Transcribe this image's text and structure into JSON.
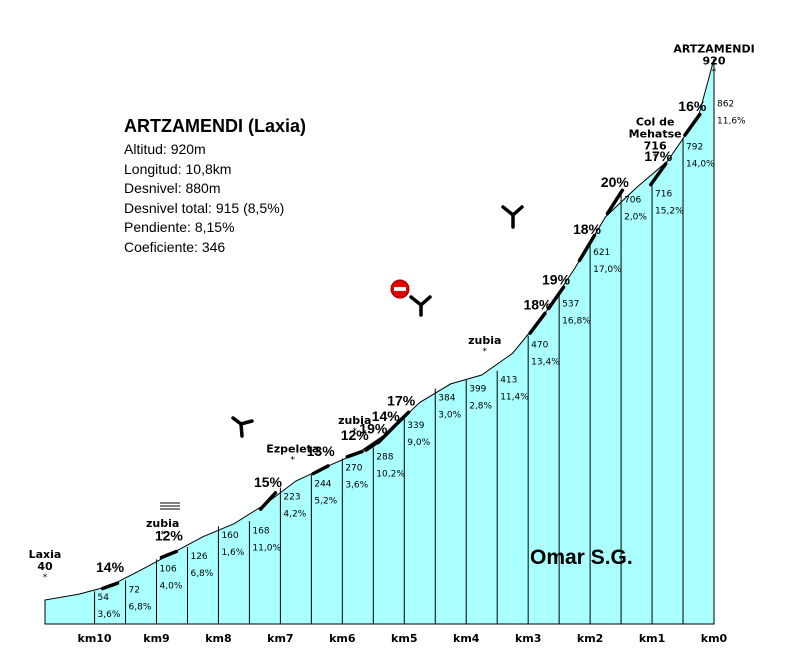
{
  "chart_data": {
    "type": "area",
    "title": "ARTZAMENDI (Laxia)",
    "xlabel": "",
    "ylabel": "",
    "x_range_km": [
      10.8,
      0
    ],
    "fill_color": "#aaffff",
    "stroke_color": "#000000",
    "ticks": [
      "km10",
      "km9",
      "km8",
      "km7",
      "km6",
      "km5",
      "km4",
      "km3",
      "km2",
      "km1",
      "km0"
    ],
    "segments": [
      {
        "km": 10,
        "altitude": "54",
        "grade": "3,6%"
      },
      {
        "km": 9.5,
        "altitude": "72",
        "grade": "6,8%"
      },
      {
        "km": 9,
        "altitude": "106",
        "grade": "4,0%"
      },
      {
        "km": 8.5,
        "altitude": "126",
        "grade": "6,8%"
      },
      {
        "km": 8,
        "altitude": "160",
        "grade": "1,6%"
      },
      {
        "km": 7.5,
        "altitude": "168",
        "grade": "11,0%"
      },
      {
        "km": 7,
        "altitude": "223",
        "grade": "4,2%"
      },
      {
        "km": 6.5,
        "altitude": "244",
        "grade": "5,2%"
      },
      {
        "km": 6,
        "altitude": "270",
        "grade": "3,6%"
      },
      {
        "km": 5.5,
        "altitude": "288",
        "grade": "10,2%"
      },
      {
        "km": 5,
        "altitude": "339",
        "grade": "9,0%"
      },
      {
        "km": 4.5,
        "altitude": "384",
        "grade": "3,0%"
      },
      {
        "km": 4,
        "altitude": "399",
        "grade": "2,8%"
      },
      {
        "km": 3.5,
        "altitude": "413",
        "grade": "11,4%"
      },
      {
        "km": 3,
        "altitude": "470",
        "grade": "13,4%"
      },
      {
        "km": 2.5,
        "altitude": "537",
        "grade": "16,8%"
      },
      {
        "km": 2,
        "altitude": "621",
        "grade": "17,0%"
      },
      {
        "km": 1.5,
        "altitude": "706",
        "grade": "2,0%"
      },
      {
        "km": 1,
        "altitude": "716",
        "grade": "15,2%"
      },
      {
        "km": 0.5,
        "altitude": "792",
        "grade": "14,0%"
      },
      {
        "km": 0,
        "altitude": "862",
        "grade": "11,6%"
      }
    ],
    "steep_labels": [
      {
        "text": "14%",
        "km": 9.75
      },
      {
        "text": "12%",
        "km": 8.8
      },
      {
        "text": "15%",
        "km": 7.2
      },
      {
        "text": "13%",
        "km": 6.35
      },
      {
        "text": "12%",
        "km": 5.8
      },
      {
        "text": "19%",
        "km": 5.5
      },
      {
        "text": "14%",
        "km": 5.3
      },
      {
        "text": "17%",
        "km": 5.05
      },
      {
        "text": "18%",
        "km": 2.85
      },
      {
        "text": "19%",
        "km": 2.55
      },
      {
        "text": "18%",
        "km": 2.05
      },
      {
        "text": "20%",
        "km": 1.6
      },
      {
        "text": "17%",
        "km": 0.9
      },
      {
        "text": "16%",
        "km": 0.35
      }
    ],
    "places": [
      {
        "lines": [
          "Laxia",
          "40"
        ],
        "km": 10.8
      },
      {
        "lines": [
          "zubia"
        ],
        "km": 8.9
      },
      {
        "lines": [
          "Ezpeleta"
        ],
        "km": 6.8
      },
      {
        "lines": [
          "zubia"
        ],
        "km": 5.8
      },
      {
        "lines": [
          "zubia"
        ],
        "km": 3.7
      },
      {
        "lines": [
          "Col de",
          "Mehatse",
          "716"
        ],
        "km": 0.95
      },
      {
        "lines": [
          "ARTZAMENDI",
          "920"
        ],
        "km": 0
      }
    ]
  },
  "info": {
    "title": "ARTZAMENDI (Laxia)",
    "lines": [
      "Altitud:  920m",
      "Longitud:  10,8km",
      "Desnivel:  880m",
      "Desnivel total:  915 (8,5%)",
      "Pendiente:  8,15%",
      "Coeficiente:  346"
    ]
  },
  "author": "Omar S.G."
}
